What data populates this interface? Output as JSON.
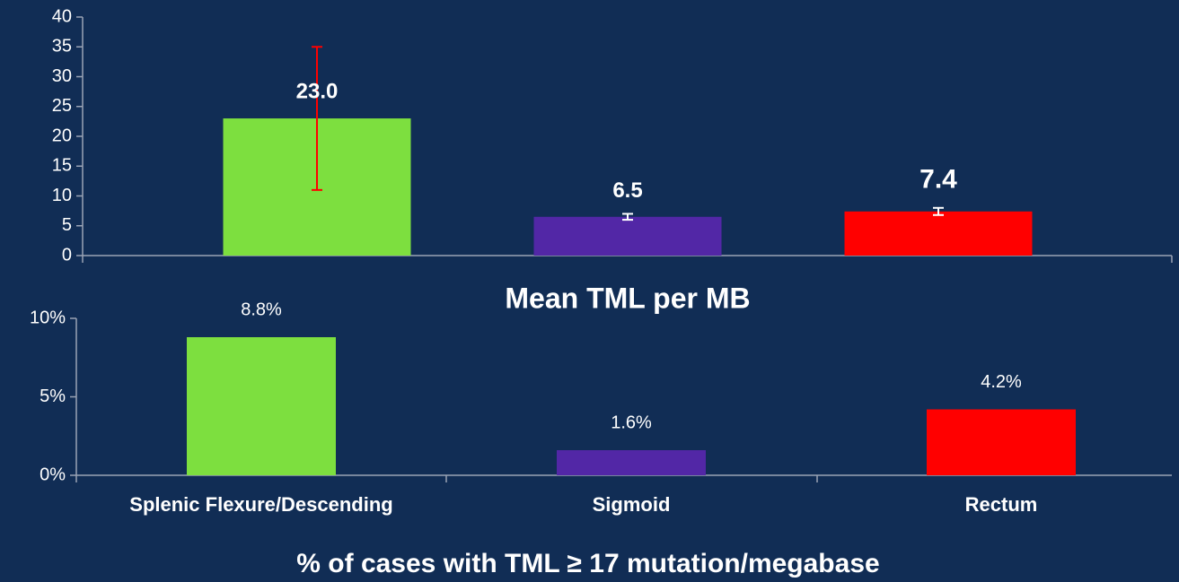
{
  "chart_data": [
    {
      "type": "bar",
      "categories": [
        null,
        null,
        null
      ],
      "values": [
        23.0,
        6.5,
        7.4
      ],
      "value_labels": [
        "23.0",
        "6.5",
        "7.4"
      ],
      "errors": [
        12,
        0.5,
        0.6
      ],
      "colors": [
        "#7ddf3f",
        "#5227a6",
        "#ff0000"
      ],
      "error_colors": [
        "#ff0000",
        "#ffffff",
        "#ffffff"
      ],
      "ylim": [
        0,
        40
      ],
      "yticks": [
        0,
        5,
        10,
        15,
        20,
        25,
        30,
        35,
        40
      ],
      "xlabel": "Mean TML per MB"
    },
    {
      "type": "bar",
      "categories": [
        "Splenic Flexure/Descending",
        "Sigmoid",
        "Rectum"
      ],
      "values": [
        8.8,
        1.6,
        4.2
      ],
      "value_labels": [
        "8.8%",
        "1.6%",
        "4.2%"
      ],
      "colors": [
        "#7ddf3f",
        "#5227a6",
        "#ff0000"
      ],
      "ylim": [
        0,
        10
      ],
      "yticks": [
        {
          "value": 0,
          "label": "0%"
        },
        {
          "value": 5,
          "label": "5%"
        },
        {
          "value": 10,
          "label": "10%"
        }
      ],
      "xlabel": "% of cases with TML  ≥ 17 mutation/megabase"
    }
  ]
}
